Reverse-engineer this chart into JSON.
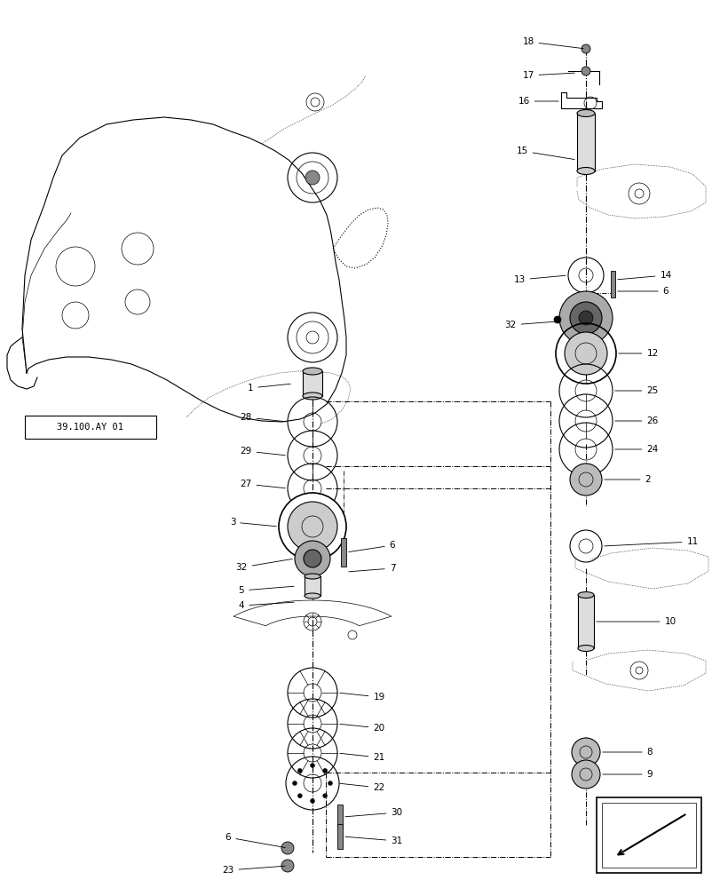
{
  "bg_color": "#ffffff",
  "line_color": "#000000",
  "ref_label": "39.100.AY 01",
  "figsize": [
    8.12,
    10.0
  ],
  "dpi": 100
}
